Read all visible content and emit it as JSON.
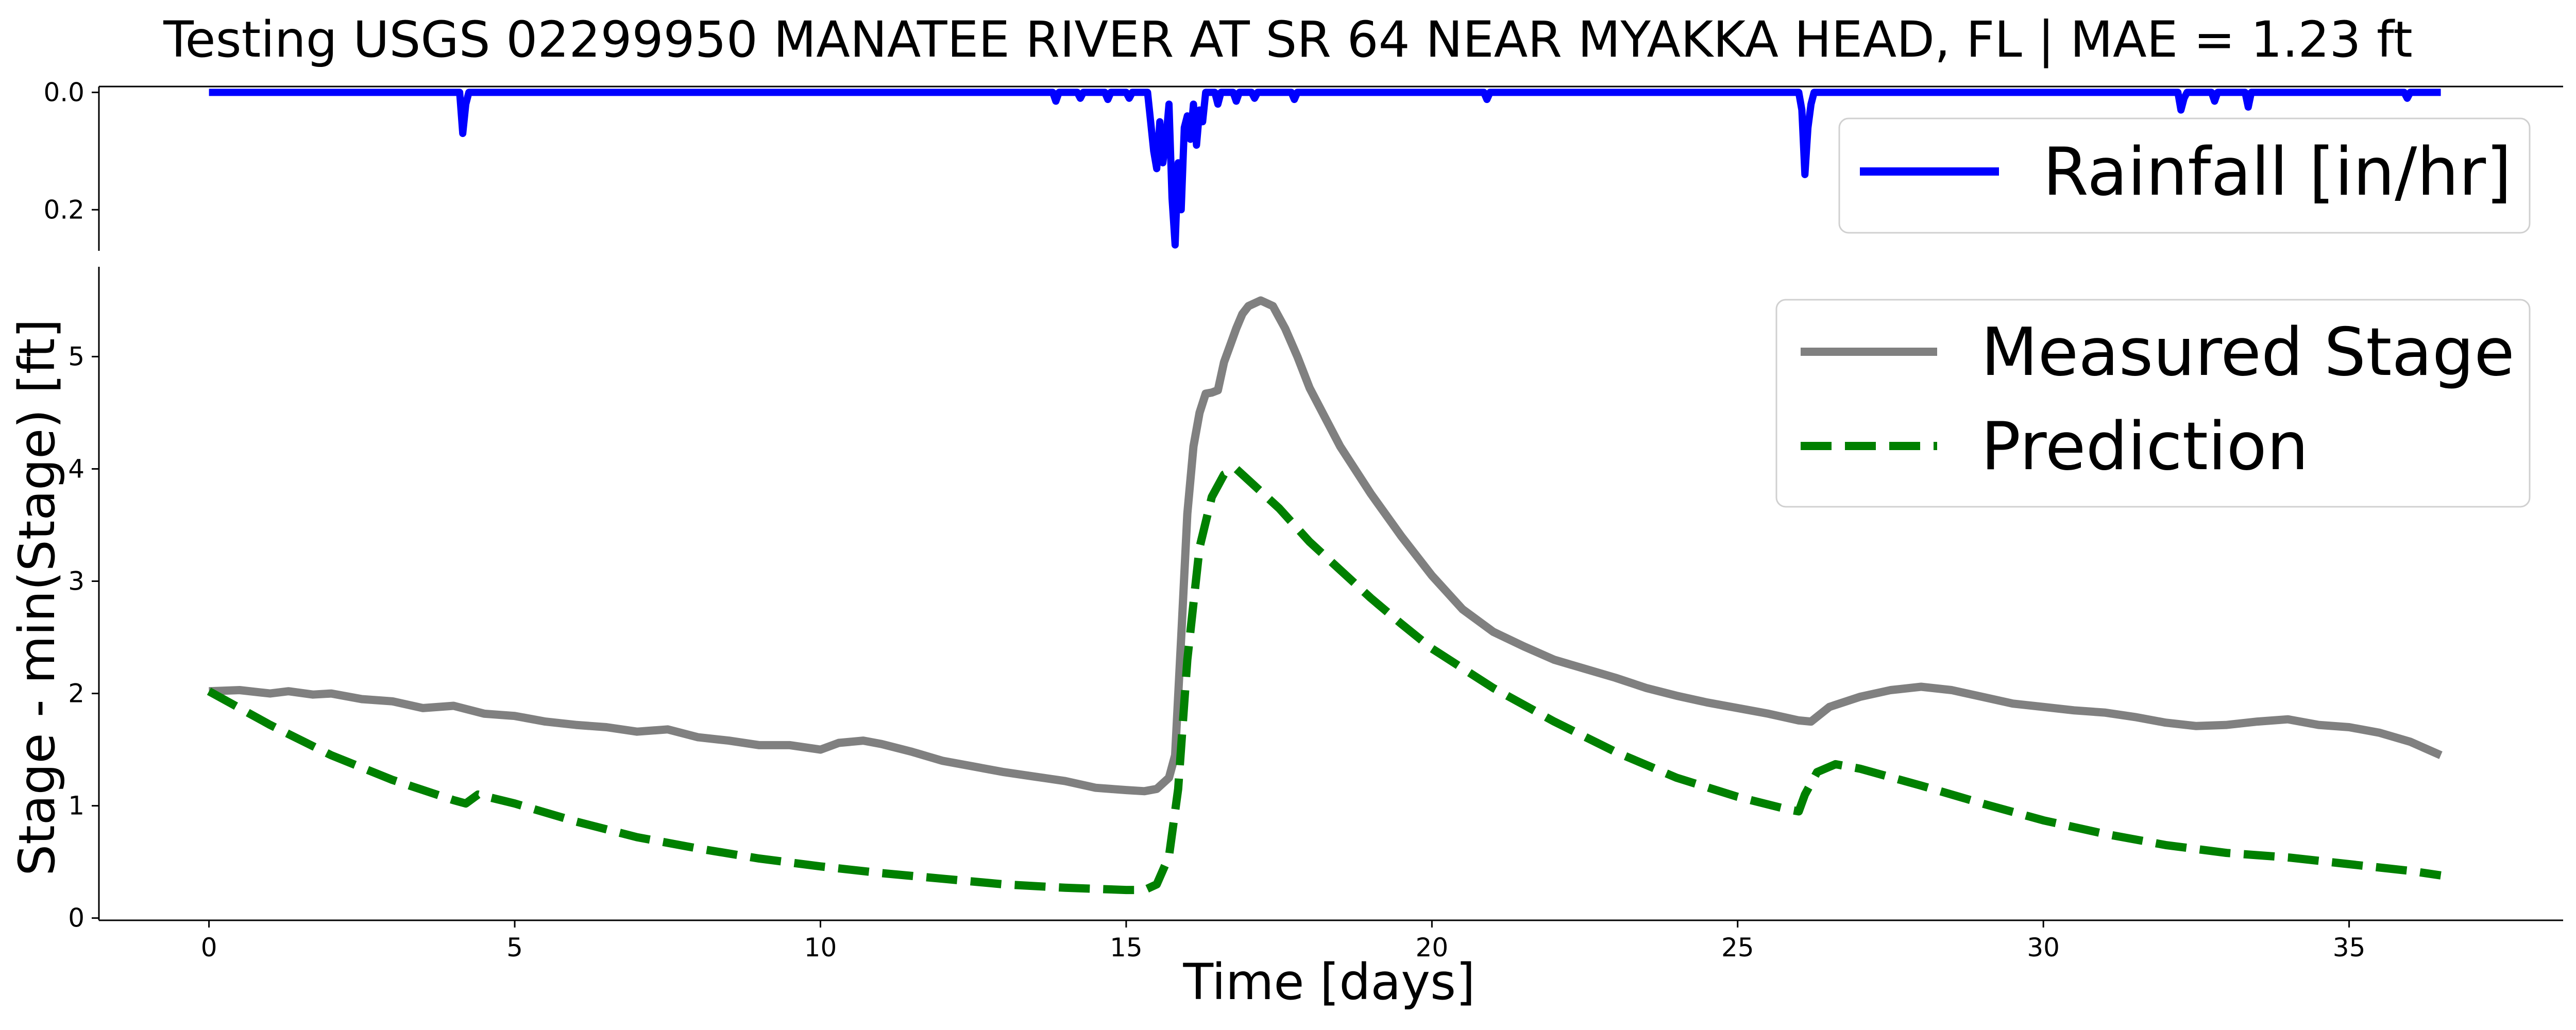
{
  "chart_data": [
    {
      "type": "line",
      "title": "Testing USGS 02299950 MANATEE RIVER AT SR 64 NEAR MYAKKA HEAD, FL | MAE = 1.23 ft",
      "ylabel": "",
      "xlim": [
        -1.8,
        38.5
      ],
      "ylim": [
        0.27,
        -0.01
      ],
      "y_inverted": true,
      "yticks": [
        0.0,
        0.2
      ],
      "ytick_labels": [
        "0.0",
        "0.2"
      ],
      "grid": false,
      "legend_position": "top-right",
      "series": [
        {
          "name": "Rainfall [in/hr]",
          "color": "#0000ff",
          "style": "solid",
          "x": [
            0,
            4.1,
            4.15,
            4.2,
            4.25,
            13.8,
            13.85,
            13.9,
            14.2,
            14.25,
            14.3,
            14.65,
            14.7,
            14.75,
            15.0,
            15.05,
            15.1,
            15.35,
            15.4,
            15.45,
            15.5,
            15.55,
            15.6,
            15.65,
            15.7,
            15.75,
            15.8,
            15.85,
            15.9,
            15.95,
            16.0,
            16.05,
            16.1,
            16.15,
            16.2,
            16.25,
            16.3,
            16.45,
            16.5,
            16.55,
            16.75,
            16.8,
            16.85,
            17.05,
            17.1,
            17.15,
            17.7,
            17.75,
            17.8,
            20.85,
            20.9,
            20.95,
            26.0,
            26.05,
            26.1,
            26.15,
            26.2,
            26.25,
            32.2,
            32.25,
            32.3,
            32.35,
            32.75,
            32.8,
            32.85,
            33.3,
            33.35,
            33.4,
            35.9,
            35.95,
            36.0,
            36.5
          ],
          "values": [
            0,
            0,
            0.07,
            0.02,
            0,
            0,
            0.015,
            0,
            0,
            0.01,
            0,
            0,
            0.012,
            0,
            0,
            0.01,
            0,
            0,
            0.05,
            0.1,
            0.13,
            0.05,
            0.12,
            0.08,
            0.02,
            0.18,
            0.26,
            0.12,
            0.2,
            0.06,
            0.04,
            0.08,
            0.02,
            0.09,
            0.03,
            0.05,
            0,
            0,
            0.02,
            0,
            0,
            0.015,
            0,
            0,
            0.01,
            0,
            0,
            0.012,
            0,
            0,
            0.012,
            0,
            0,
            0.03,
            0.14,
            0.06,
            0.02,
            0,
            0,
            0.03,
            0.01,
            0,
            0,
            0.015,
            0,
            0,
            0.025,
            0,
            0,
            0.01,
            0,
            0
          ]
        }
      ]
    },
    {
      "type": "line",
      "xlabel": "Time [days]",
      "ylabel": "Stage - min(Stage) [ft]",
      "xlim": [
        -1.8,
        38.5
      ],
      "ylim": [
        -0.02,
        5.8
      ],
      "xticks": [
        0,
        5,
        10,
        15,
        20,
        25,
        30,
        35
      ],
      "xtick_labels": [
        "0",
        "5",
        "10",
        "15",
        "20",
        "25",
        "30",
        "35"
      ],
      "yticks": [
        0,
        1,
        2,
        3,
        4,
        5
      ],
      "ytick_labels": [
        "0",
        "1",
        "2",
        "3",
        "4",
        "5"
      ],
      "grid": false,
      "legend_position": "top-right",
      "series": [
        {
          "name": "Measured Stage",
          "color": "#808080",
          "style": "solid",
          "x": [
            0,
            0.5,
            1.0,
            1.3,
            1.7,
            2.0,
            2.5,
            3.0,
            3.5,
            4.0,
            4.5,
            5.0,
            5.5,
            6.0,
            6.5,
            7.0,
            7.5,
            8.0,
            8.5,
            9.0,
            9.5,
            10.0,
            10.3,
            10.7,
            11.0,
            11.5,
            12.0,
            12.5,
            13.0,
            13.5,
            14.0,
            14.5,
            15.0,
            15.3,
            15.5,
            15.7,
            15.8,
            15.9,
            16.0,
            16.1,
            16.2,
            16.3,
            16.4,
            16.5,
            16.6,
            16.7,
            16.8,
            16.9,
            17.0,
            17.2,
            17.4,
            17.6,
            17.8,
            18.0,
            18.5,
            19.0,
            19.5,
            20.0,
            20.5,
            21.0,
            21.5,
            22.0,
            22.5,
            23.0,
            23.5,
            24.0,
            24.5,
            25.0,
            25.5,
            26.0,
            26.2,
            26.5,
            27.0,
            27.5,
            28.0,
            28.5,
            29.0,
            29.5,
            30.0,
            30.5,
            31.0,
            31.5,
            32.0,
            32.5,
            33.0,
            33.5,
            34.0,
            34.5,
            35.0,
            35.5,
            36.0,
            36.5
          ],
          "values": [
            2.02,
            2.03,
            2.0,
            2.02,
            1.99,
            2.0,
            1.95,
            1.93,
            1.87,
            1.89,
            1.82,
            1.8,
            1.75,
            1.72,
            1.7,
            1.66,
            1.68,
            1.61,
            1.58,
            1.54,
            1.54,
            1.5,
            1.56,
            1.58,
            1.55,
            1.48,
            1.4,
            1.35,
            1.3,
            1.26,
            1.22,
            1.16,
            1.14,
            1.13,
            1.15,
            1.25,
            1.45,
            2.5,
            3.6,
            4.2,
            4.5,
            4.67,
            4.68,
            4.7,
            4.95,
            5.1,
            5.25,
            5.38,
            5.45,
            5.5,
            5.45,
            5.25,
            5.0,
            4.72,
            4.2,
            3.78,
            3.4,
            3.05,
            2.75,
            2.55,
            2.42,
            2.3,
            2.22,
            2.14,
            2.05,
            1.98,
            1.92,
            1.87,
            1.82,
            1.76,
            1.75,
            1.88,
            1.97,
            2.03,
            2.06,
            2.03,
            1.97,
            1.91,
            1.88,
            1.85,
            1.83,
            1.79,
            1.74,
            1.71,
            1.72,
            1.75,
            1.77,
            1.72,
            1.7,
            1.65,
            1.57,
            1.45
          ]
        },
        {
          "name": "Prediction",
          "color": "#008000",
          "style": "dashed",
          "x": [
            0,
            1,
            2,
            3,
            4,
            4.2,
            4.4,
            5,
            6,
            7,
            8,
            9,
            10,
            11,
            12,
            13,
            14,
            15,
            15.3,
            15.5,
            15.7,
            15.85,
            16.0,
            16.2,
            16.4,
            16.6,
            16.8,
            17.0,
            17.5,
            18,
            18.5,
            19,
            19.5,
            20,
            21,
            22,
            23,
            24,
            25,
            25.8,
            26.0,
            26.1,
            26.3,
            26.6,
            27,
            28,
            29,
            30,
            31,
            32,
            33,
            34,
            35,
            36,
            36.5
          ],
          "values": [
            2.02,
            1.72,
            1.45,
            1.23,
            1.05,
            1.02,
            1.1,
            1.02,
            0.86,
            0.72,
            0.62,
            0.53,
            0.46,
            0.4,
            0.35,
            0.3,
            0.27,
            0.25,
            0.25,
            0.3,
            0.55,
            1.15,
            2.3,
            3.3,
            3.75,
            3.95,
            4.0,
            3.9,
            3.65,
            3.35,
            3.1,
            2.85,
            2.62,
            2.4,
            2.05,
            1.75,
            1.48,
            1.25,
            1.08,
            0.97,
            0.95,
            1.1,
            1.3,
            1.37,
            1.33,
            1.18,
            1.02,
            0.87,
            0.75,
            0.65,
            0.58,
            0.54,
            0.48,
            0.42,
            0.38
          ]
        }
      ]
    }
  ]
}
